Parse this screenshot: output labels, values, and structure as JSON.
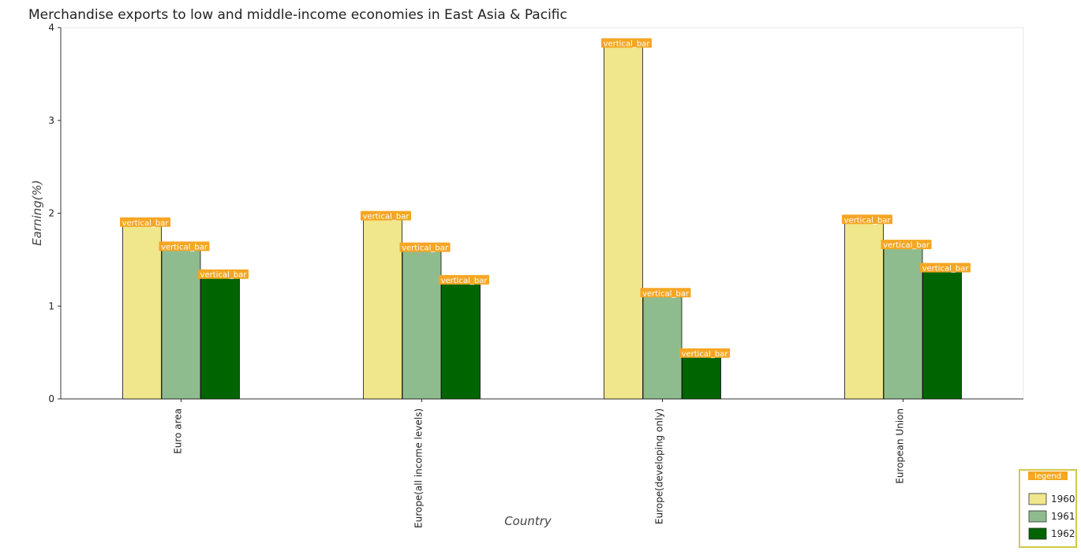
{
  "chart_data": {
    "type": "bar",
    "title": "Merchandise exports to low and middle-income economies in East Asia & Pacific",
    "xlabel": "Country",
    "ylabel": "Earning(%)",
    "categories": [
      "Euro area",
      "Europe(all income levels)",
      "Europe(developing only)",
      "European Union"
    ],
    "series": [
      {
        "name": "1960",
        "values": [
          1.87,
          1.94,
          3.8,
          1.9
        ],
        "color": "#f0e68c"
      },
      {
        "name": "1961",
        "values": [
          1.61,
          1.6,
          1.11,
          1.63
        ],
        "color": "#8fbc8f"
      },
      {
        "name": "1962",
        "values": [
          1.31,
          1.25,
          0.46,
          1.38
        ],
        "color": "#006400"
      }
    ],
    "ylim": [
      0,
      4
    ],
    "yticks": [
      0,
      1,
      2,
      3,
      4
    ],
    "grid": false,
    "legend_position": "bottom-right",
    "legend_title": "legend",
    "bar_annotation": "vertical_bar"
  }
}
